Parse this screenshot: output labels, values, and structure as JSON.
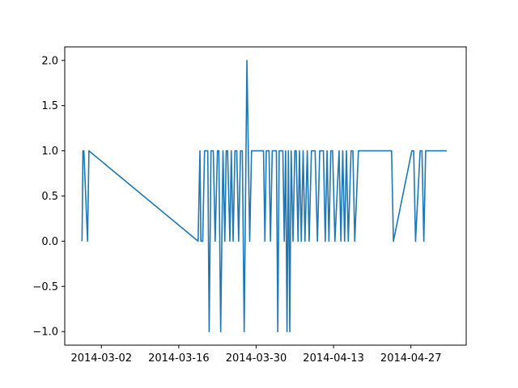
{
  "chart_data": {
    "type": "line",
    "title": "",
    "xlabel": "",
    "ylabel": "",
    "x_type": "date",
    "xlim": [
      "2014-02-23T09:00",
      "2014-05-07T00:00"
    ],
    "ylim": [
      -1.15,
      2.15
    ],
    "xticks": [
      "2014-03-02",
      "2014-03-16",
      "2014-03-30",
      "2014-04-13",
      "2014-04-27"
    ],
    "yticks": [
      "−1.0",
      "−0.5",
      "0.0",
      "0.5",
      "1.0",
      "1.5",
      "2.0"
    ],
    "ytick_values": [
      -1.0,
      -0.5,
      0.0,
      0.5,
      1.0,
      1.5,
      2.0
    ],
    "grid": false,
    "color": "#1f77b4",
    "series": [
      {
        "x": [
          "2014-02-26T12:00",
          "2014-02-26T16:00",
          "2014-02-26T20:00",
          "2014-02-27T12:00",
          "2014-02-27T18:00",
          "2014-03-19T12:00",
          "2014-03-19T20:00",
          "2014-03-20T00:00",
          "2014-03-20T08:00",
          "2014-03-20T16:00",
          "2014-03-21T06:00",
          "2014-03-21T12:00",
          "2014-03-21T20:00",
          "2014-03-22T06:00",
          "2014-03-22T14:00",
          "2014-03-23T00:00",
          "2014-03-23T06:00",
          "2014-03-23T14:00",
          "2014-03-24T00:00",
          "2014-03-24T08:00",
          "2014-03-24T14:00",
          "2014-03-24T20:00",
          "2014-03-25T06:00",
          "2014-03-25T12:00",
          "2014-03-25T20:00",
          "2014-03-26T04:00",
          "2014-03-26T12:00",
          "2014-03-26T20:00",
          "2014-03-27T04:00",
          "2014-03-27T12:00",
          "2014-03-27T20:00",
          "2014-03-28T08:00",
          "2014-03-28T14:00",
          "2014-03-28T20:00",
          "2014-03-29T04:00",
          "2014-03-29T12:00",
          "2014-03-30T12:00",
          "2014-03-31T08:00",
          "2014-03-31T14:00",
          "2014-03-31T20:00",
          "2014-04-01T08:00",
          "2014-04-01T14:00",
          "2014-04-01T22:00",
          "2014-04-02T16:00",
          "2014-04-02T22:00",
          "2014-04-03T04:00",
          "2014-04-03T14:00",
          "2014-04-03T20:00",
          "2014-04-04T02:00",
          "2014-04-04T08:00",
          "2014-04-04T14:00",
          "2014-04-04T20:00",
          "2014-04-05T02:00",
          "2014-04-05T08:00",
          "2014-04-05T16:00",
          "2014-04-06T00:00",
          "2014-04-06T06:00",
          "2014-04-06T14:00",
          "2014-04-06T20:00",
          "2014-04-07T04:00",
          "2014-04-07T12:00",
          "2014-04-07T20:00",
          "2014-04-08T06:00",
          "2014-04-08T14:00",
          "2014-04-09T00:00",
          "2014-04-09T16:00",
          "2014-04-10T02:00",
          "2014-04-10T12:00",
          "2014-04-11T04:00",
          "2014-04-11T12:00",
          "2014-04-11T20:00",
          "2014-04-12T04:00",
          "2014-04-12T12:00",
          "2014-04-12T20:00",
          "2014-04-13T06:00",
          "2014-04-14T00:00",
          "2014-04-14T08:00",
          "2014-04-14T16:00",
          "2014-04-15T00:00",
          "2014-04-15T08:00",
          "2014-04-15T16:00",
          "2014-04-16T04:00",
          "2014-04-16T12:00",
          "2014-04-16T20:00",
          "2014-04-17T12:00",
          "2014-04-17T20:00",
          "2014-04-23T06:00",
          "2014-04-23T12:00",
          "2014-04-23T20:00",
          "2014-04-27T04:00",
          "2014-04-27T12:00",
          "2014-04-27T20:00",
          "2014-04-28T16:00",
          "2014-04-29T00:00",
          "2014-04-29T08:00",
          "2014-04-29T16:00",
          "2014-05-03T12:00"
        ],
        "y": [
          0,
          1,
          1,
          0,
          1,
          0,
          1,
          0,
          0,
          1,
          1,
          -1,
          1,
          1,
          0,
          1,
          1,
          -1,
          1,
          0,
          1,
          1,
          0,
          1,
          0,
          1,
          1,
          0,
          1,
          1,
          -1,
          2,
          1,
          0,
          1,
          1,
          1,
          1,
          0,
          1,
          1,
          0,
          1,
          1,
          -1,
          1,
          1,
          1,
          0,
          1,
          -1,
          1,
          -1,
          1,
          0,
          1,
          1,
          0,
          1,
          0,
          1,
          0,
          1,
          0,
          1,
          1,
          0,
          1,
          1,
          0,
          1,
          0,
          1,
          1,
          0,
          1,
          0,
          1,
          0,
          1,
          0,
          1,
          1,
          0,
          1,
          1,
          1,
          1,
          0,
          1,
          1,
          0,
          1,
          1,
          0,
          1,
          1
        ]
      }
    ]
  }
}
